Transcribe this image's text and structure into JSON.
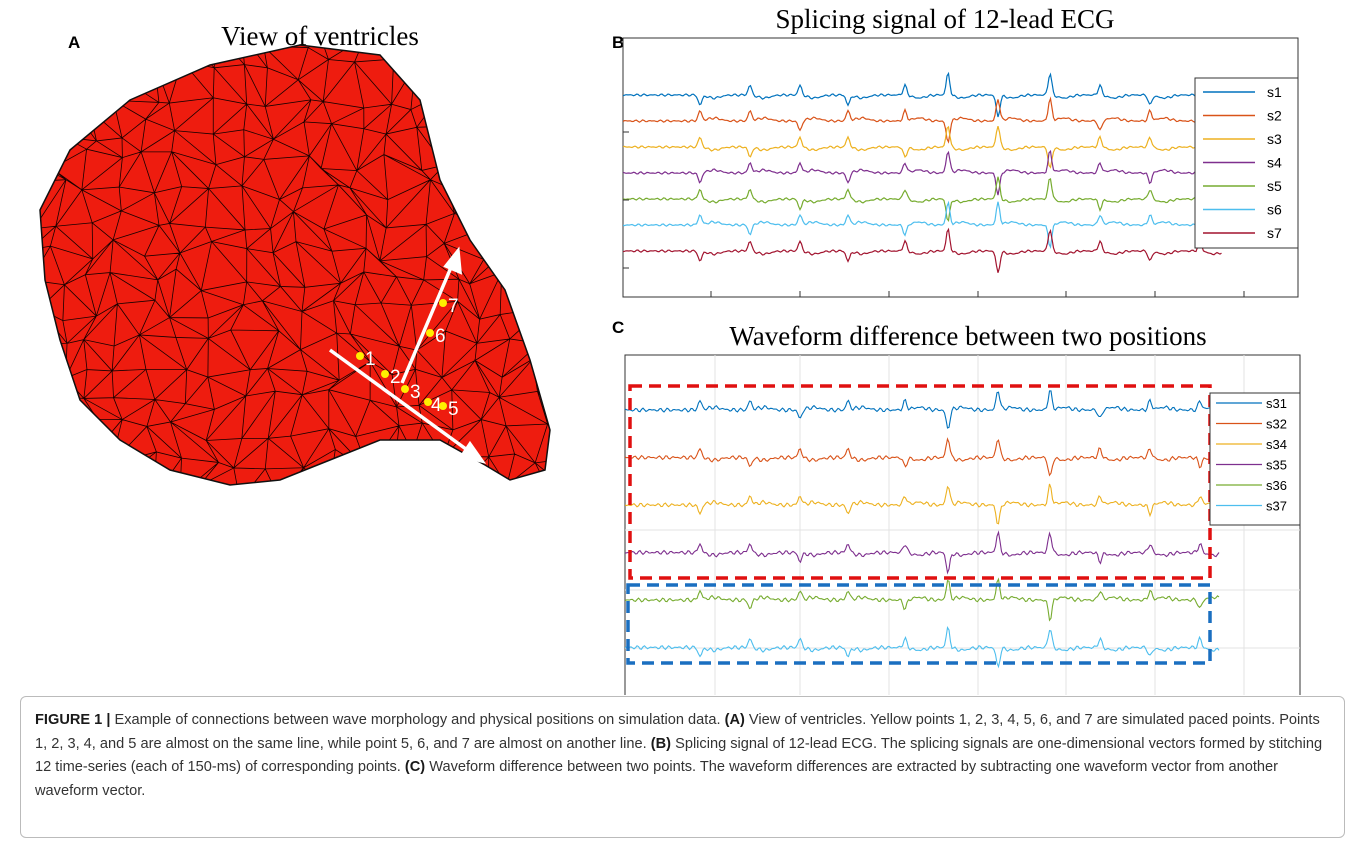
{
  "panel_a": {
    "label": "A",
    "title": "View of ventricles",
    "points": [
      "1",
      "2",
      "3",
      "4",
      "5",
      "6",
      "7"
    ]
  },
  "panel_b": {
    "label": "B",
    "title": "Splicing signal of 12-lead ECG",
    "legend": [
      {
        "name": "s1",
        "color": "#0072bd"
      },
      {
        "name": "s2",
        "color": "#d95319"
      },
      {
        "name": "s3",
        "color": "#edb120"
      },
      {
        "name": "s4",
        "color": "#7e2f8e"
      },
      {
        "name": "s5",
        "color": "#77ac30"
      },
      {
        "name": "s6",
        "color": "#4dbeee"
      },
      {
        "name": "s7",
        "color": "#a2142f"
      }
    ]
  },
  "panel_c": {
    "label": "C",
    "title": "Waveform difference between two positions",
    "legend": [
      {
        "name": "s31",
        "color": "#0072bd"
      },
      {
        "name": "s32",
        "color": "#d95319"
      },
      {
        "name": "s34",
        "color": "#edb120"
      },
      {
        "name": "s35",
        "color": "#7e2f8e"
      },
      {
        "name": "s36",
        "color": "#77ac30"
      },
      {
        "name": "s37",
        "color": "#4dbeee"
      }
    ]
  },
  "caption": {
    "lead": "FIGURE 1 |",
    "intro": "Example of connections between wave morphology and physical positions on simulation data.",
    "a_label": "(A)",
    "a_text": "View of ventricles. Yellow points 1, 2, 3, 4, 5, 6, and 7 are simulated paced points. Points 1, 2, 3, 4, and 5 are almost on the same line, while point 5, 6, and 7 are almost on another line.",
    "b_label": "(B)",
    "b_text": "Splicing signal of 12-lead ECG. The splicing signals are one-dimensional vectors formed by stitching 12 time-series (each of 150-ms) of corresponding points.",
    "c_label": "(C)",
    "c_text": "Waveform difference between two points. The waveform differences are extracted by subtracting one waveform vector from another waveform vector."
  }
}
